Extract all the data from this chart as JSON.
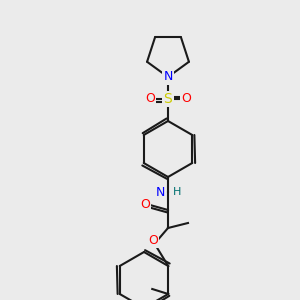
{
  "bg_color": "#ebebeb",
  "bond_color": "#1a1a1a",
  "bond_width": 1.5,
  "atom_colors": {
    "N": "#0000ff",
    "O": "#ff0000",
    "S": "#cccc00",
    "H": "#007070",
    "C": "#1a1a1a"
  },
  "font_size": 9
}
